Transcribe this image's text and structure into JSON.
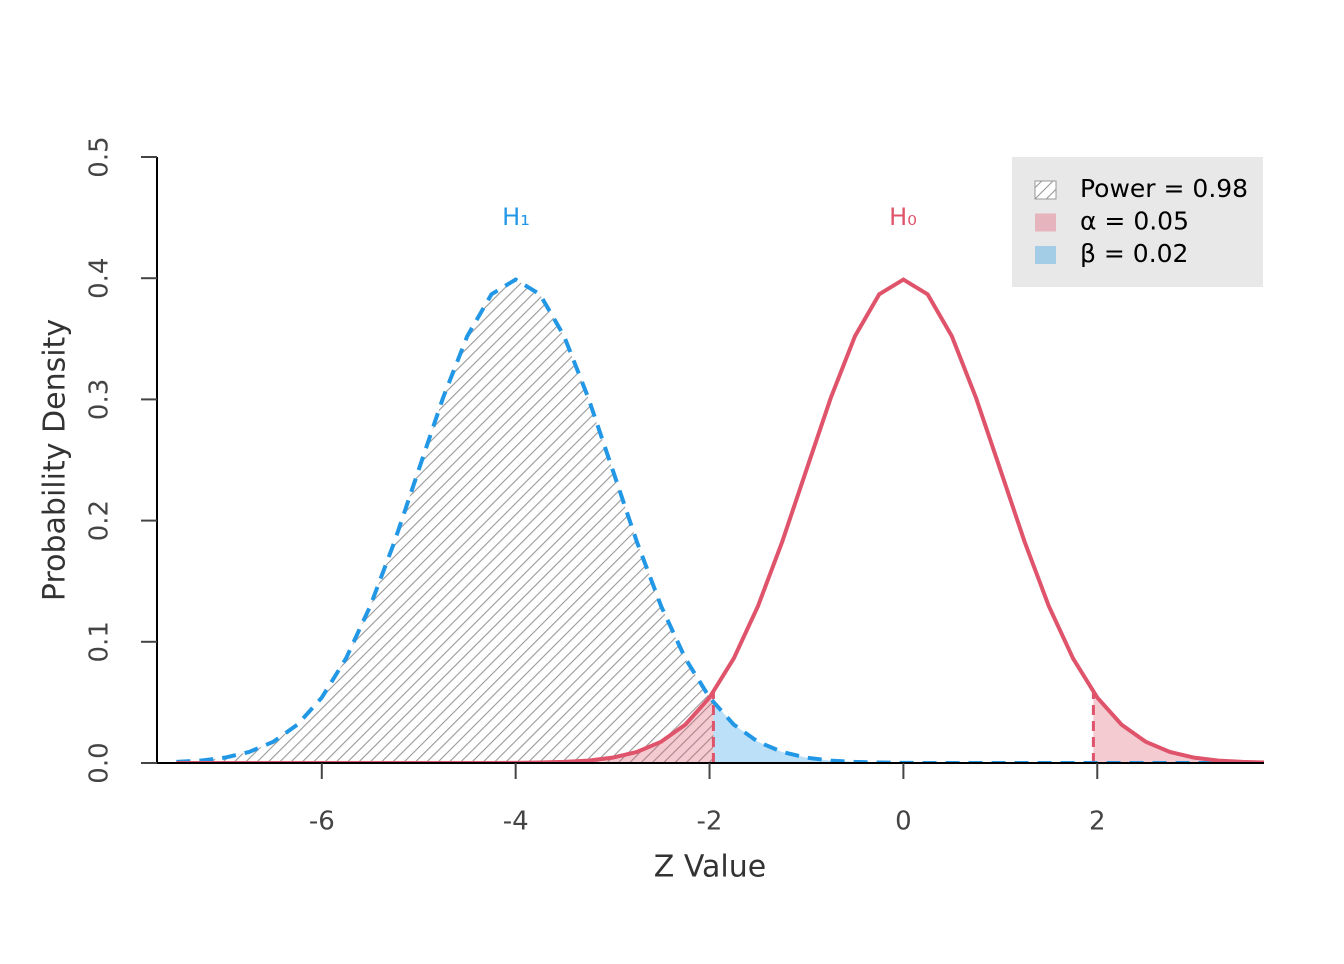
{
  "chart_data": {
    "type": "line",
    "x_label": "Z Value",
    "y_label": "Probability Density",
    "x": [
      -7.5,
      -7.25,
      -7,
      -6.75,
      -6.5,
      -6.25,
      -6,
      -5.75,
      -5.5,
      -5.25,
      -5,
      -4.75,
      -4.5,
      -4.25,
      -4,
      -3.75,
      -3.5,
      -3.25,
      -3,
      -2.75,
      -2.5,
      -2.25,
      -2,
      -1.75,
      -1.5,
      -1.25,
      -1,
      -0.75,
      -0.5,
      -0.25,
      0,
      0.25,
      0.5,
      0.75,
      1,
      1.25,
      1.5,
      1.75,
      2,
      2.25,
      2.5,
      2.75,
      3,
      3.25,
      3.5,
      3.75
    ],
    "series": [
      {
        "name": "H₁",
        "color": "#2297E6",
        "dashed": true,
        "values": [
          0.0009,
          0.002,
          0.0044,
          0.0091,
          0.0175,
          0.0317,
          0.054,
          0.0863,
          0.1295,
          0.1826,
          0.242,
          0.3011,
          0.3521,
          0.3867,
          0.3989,
          0.3867,
          0.3521,
          0.3011,
          0.242,
          0.1826,
          0.1295,
          0.0863,
          0.054,
          0.0317,
          0.0175,
          0.0091,
          0.0044,
          0.002,
          0.0009,
          0.0004,
          0.0001,
          0,
          0,
          0,
          0,
          0,
          0,
          0,
          0,
          0,
          0,
          0,
          0,
          0,
          0,
          0
        ]
      },
      {
        "name": "H₀",
        "color": "#DF536B",
        "dashed": false,
        "values": [
          0,
          0,
          0,
          0,
          0,
          0,
          0,
          0,
          0,
          0,
          0,
          0,
          0,
          0,
          0.0001,
          0.0004,
          0.0009,
          0.002,
          0.0044,
          0.0091,
          0.0175,
          0.0317,
          0.054,
          0.0863,
          0.1295,
          0.1826,
          0.242,
          0.3011,
          0.3521,
          0.3867,
          0.3989,
          0.3867,
          0.3521,
          0.3011,
          0.242,
          0.1826,
          0.1295,
          0.0863,
          0.054,
          0.0317,
          0.0175,
          0.0091,
          0.0044,
          0.002,
          0.0009,
          0.0004
        ]
      }
    ],
    "critical_values": [
      -1.96,
      1.96
    ],
    "xlim": [
      -7.7,
      3.72
    ],
    "ylim": [
      0,
      0.5
    ],
    "xticks": [
      -6,
      -4,
      -2,
      0,
      2
    ],
    "yticks": [
      {
        "value": 0,
        "label": "0.0"
      },
      0.1,
      0.2,
      0.3,
      0.4,
      0.5
    ],
    "legend": {
      "position": "top-right",
      "entries": [
        {
          "label": "Power = 0.98",
          "color": "#999999"
        },
        {
          "label": "α = 0.05",
          "color": "#DF536B"
        },
        {
          "label": "β = 0.02",
          "color": "#2297E6"
        }
      ]
    }
  }
}
